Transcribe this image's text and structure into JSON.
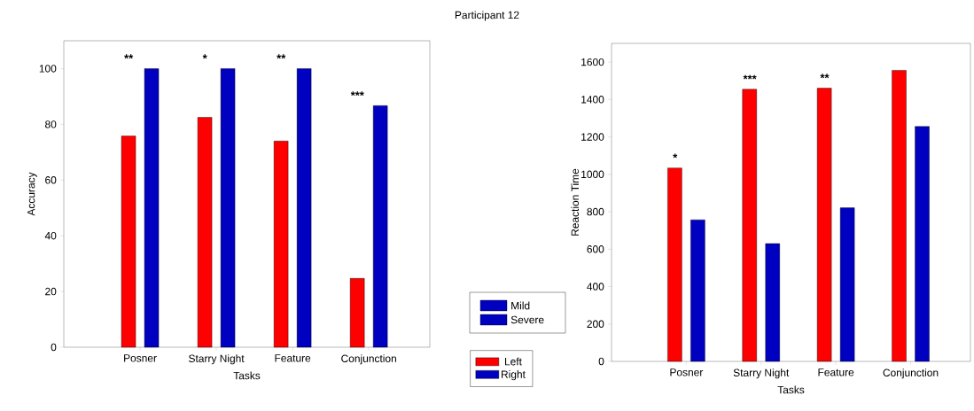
{
  "chart_data": [
    {
      "type": "bar",
      "xlabel": "Tasks",
      "ylabel": "Accuracy",
      "categories": [
        "Posner",
        "Starry Night",
        "Feature",
        "Conjunction"
      ],
      "series": [
        {
          "name": "Left",
          "color": "#ff0000",
          "values": [
            75.8,
            82.5,
            74,
            24.7
          ]
        },
        {
          "name": "Right",
          "color": "#0000c0",
          "values": [
            100,
            100,
            100,
            86.7
          ]
        }
      ],
      "ylim": [
        0,
        110
      ],
      "yticks": [
        0,
        20,
        40,
        60,
        80,
        100
      ],
      "legend": "bottom right",
      "annotations": [
        "**",
        "*",
        "**",
        "***"
      ]
    },
    {
      "type": "other",
      "title": "Participant 12",
      "annotations": [
        "Mild",
        "Severe"
      ]
    },
    {
      "type": "bar",
      "xlabel": "Tasks",
      "ylabel": "Reaction Time",
      "categories": [
        "Posner",
        "Starry Night",
        "Feature",
        "Conjunction"
      ],
      "series": [
        {
          "color": "#ff0000",
          "values": [
            1034,
            1455,
            1461,
            1556
          ]
        },
        {
          "color": "#0000c0",
          "values": [
            757,
            630,
            821,
            1256
          ]
        }
      ],
      "ylim": [
        0,
        1700
      ],
      "yticks": [
        0,
        200,
        400,
        600,
        800,
        1000,
        1200,
        1400,
        1600
      ],
      "annotations": [
        "*",
        "***",
        "**"
      ]
    }
  ]
}
